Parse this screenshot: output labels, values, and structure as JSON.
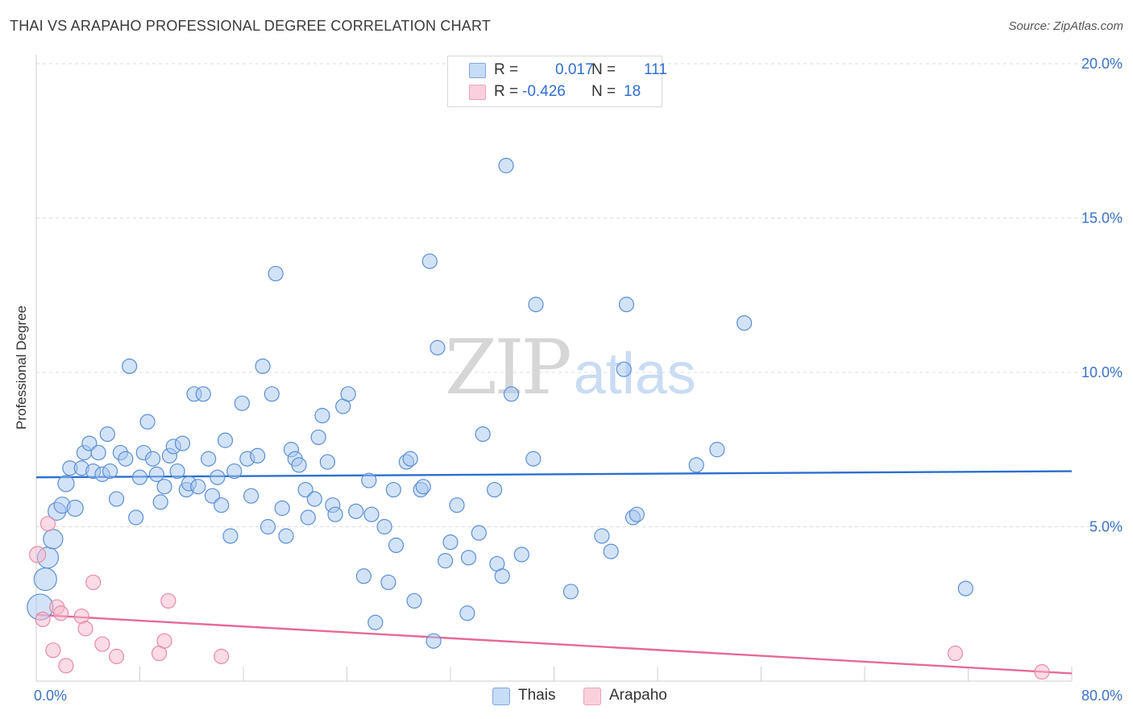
{
  "title": "THAI VS ARAPAHO PROFESSIONAL DEGREE CORRELATION CHART",
  "source": "Source: ZipAtlas.com",
  "watermark": {
    "zip": "ZIP",
    "atlas": "atlas"
  },
  "legend": [
    {
      "name": "Thais",
      "r_label": "R =",
      "r_value": "0.017",
      "n_label": "N =",
      "n_value": "111",
      "color": "#a8c8f0",
      "stroke": "#5b8fd6"
    },
    {
      "name": "Arapaho",
      "r_label": "R =",
      "r_value": "-0.426",
      "n_label": "N =",
      "n_value": "18",
      "color": "#f7b8cb",
      "stroke": "#e88aa8"
    }
  ],
  "chart_data": {
    "type": "scatter",
    "title": "THAI VS ARAPAHO PROFESSIONAL DEGREE CORRELATION CHART",
    "xlabel": "",
    "ylabel": "Professional Degree",
    "xlim": [
      0,
      80
    ],
    "ylim": [
      0,
      20.5
    ],
    "x_tick_labels": [
      "0.0%",
      "80.0%"
    ],
    "y_ticks": [
      5,
      10,
      15,
      20
    ],
    "y_tick_labels": [
      "5.0%",
      "10.0%",
      "15.0%",
      "20.0%"
    ],
    "grid": true,
    "series": [
      {
        "name": "Thais",
        "color": "#a8c8f0",
        "stroke": "#5b8fd6",
        "trend": {
          "x": [
            0,
            80
          ],
          "y": [
            6.6,
            6.8
          ],
          "color": "#2a6fd0"
        },
        "points": [
          [
            0.3,
            2.4,
            16
          ],
          [
            0.7,
            3.3,
            14
          ],
          [
            0.9,
            4.0,
            13
          ],
          [
            1.3,
            4.6,
            12
          ],
          [
            1.6,
            5.5,
            11
          ],
          [
            2.0,
            5.7,
            10
          ],
          [
            2.3,
            6.4,
            10
          ],
          [
            2.6,
            6.9,
            9
          ],
          [
            3.0,
            5.6,
            10
          ],
          [
            3.5,
            6.9,
            9
          ],
          [
            3.7,
            7.4,
            9
          ],
          [
            4.1,
            7.7,
            9
          ],
          [
            4.4,
            6.8,
            9
          ],
          [
            4.8,
            7.4,
            9
          ],
          [
            5.1,
            6.7,
            9
          ],
          [
            5.5,
            8.0,
            9
          ],
          [
            5.7,
            6.8,
            9
          ],
          [
            6.2,
            5.9,
            9
          ],
          [
            6.5,
            7.4,
            9
          ],
          [
            6.9,
            7.2,
            9
          ],
          [
            7.2,
            10.2,
            9
          ],
          [
            7.7,
            5.3,
            9
          ],
          [
            8.0,
            6.6,
            9
          ],
          [
            8.3,
            7.4,
            9
          ],
          [
            8.6,
            8.4,
            9
          ],
          [
            9.0,
            7.2,
            9
          ],
          [
            9.3,
            6.7,
            9
          ],
          [
            9.6,
            5.8,
            9
          ],
          [
            9.9,
            6.3,
            9
          ],
          [
            10.3,
            7.3,
            9
          ],
          [
            10.6,
            7.6,
            9
          ],
          [
            10.9,
            6.8,
            9
          ],
          [
            11.3,
            7.7,
            9
          ],
          [
            11.6,
            6.2,
            9
          ],
          [
            11.8,
            6.4,
            9
          ],
          [
            12.2,
            9.3,
            9
          ],
          [
            12.5,
            6.3,
            9
          ],
          [
            12.9,
            9.3,
            9
          ],
          [
            13.3,
            7.2,
            9
          ],
          [
            13.6,
            6.0,
            9
          ],
          [
            14.0,
            6.6,
            9
          ],
          [
            14.3,
            5.7,
            9
          ],
          [
            14.6,
            7.8,
            9
          ],
          [
            15.0,
            4.7,
            9
          ],
          [
            15.3,
            6.8,
            9
          ],
          [
            15.9,
            9.0,
            9
          ],
          [
            16.3,
            7.2,
            9
          ],
          [
            16.6,
            6.0,
            9
          ],
          [
            17.1,
            7.3,
            9
          ],
          [
            17.5,
            10.2,
            9
          ],
          [
            17.9,
            5.0,
            9
          ],
          [
            18.2,
            9.3,
            9
          ],
          [
            18.5,
            13.2,
            9
          ],
          [
            19.0,
            5.6,
            9
          ],
          [
            19.3,
            4.7,
            9
          ],
          [
            19.7,
            7.5,
            9
          ],
          [
            20.0,
            7.2,
            9
          ],
          [
            20.3,
            7.0,
            9
          ],
          [
            20.8,
            6.2,
            9
          ],
          [
            21.0,
            5.3,
            9
          ],
          [
            21.5,
            5.9,
            9
          ],
          [
            21.8,
            7.9,
            9
          ],
          [
            22.1,
            8.6,
            9
          ],
          [
            22.5,
            7.1,
            9
          ],
          [
            22.9,
            5.7,
            9
          ],
          [
            23.1,
            5.4,
            9
          ],
          [
            23.7,
            8.9,
            9
          ],
          [
            24.1,
            9.3,
            9
          ],
          [
            24.7,
            5.5,
            9
          ],
          [
            25.3,
            3.4,
            9
          ],
          [
            25.7,
            6.5,
            9
          ],
          [
            25.9,
            5.4,
            9
          ],
          [
            26.2,
            1.9,
            9
          ],
          [
            26.9,
            5.0,
            9
          ],
          [
            27.2,
            3.2,
            9
          ],
          [
            27.6,
            6.2,
            9
          ],
          [
            27.8,
            4.4,
            9
          ],
          [
            28.6,
            7.1,
            9
          ],
          [
            28.9,
            7.2,
            9
          ],
          [
            29.2,
            2.6,
            9
          ],
          [
            29.7,
            6.2,
            9
          ],
          [
            29.9,
            6.3,
            9
          ],
          [
            30.4,
            13.6,
            9
          ],
          [
            30.7,
            1.3,
            9
          ],
          [
            31.0,
            10.8,
            9
          ],
          [
            31.6,
            3.9,
            9
          ],
          [
            32.0,
            4.5,
            9
          ],
          [
            32.5,
            5.7,
            9
          ],
          [
            33.3,
            2.2,
            9
          ],
          [
            33.4,
            4.0,
            9
          ],
          [
            34.2,
            4.8,
            9
          ],
          [
            34.5,
            8.0,
            9
          ],
          [
            35.4,
            6.2,
            9
          ],
          [
            35.6,
            3.8,
            9
          ],
          [
            36.0,
            3.4,
            9
          ],
          [
            36.3,
            16.7,
            9
          ],
          [
            36.7,
            9.3,
            9
          ],
          [
            37.5,
            4.1,
            9
          ],
          [
            38.4,
            7.2,
            9
          ],
          [
            38.6,
            12.2,
            9
          ],
          [
            41.3,
            2.9,
            9
          ],
          [
            43.7,
            4.7,
            9
          ],
          [
            44.4,
            4.2,
            9
          ],
          [
            45.4,
            10.1,
            9
          ],
          [
            45.6,
            12.2,
            9
          ],
          [
            46.1,
            5.3,
            9
          ],
          [
            46.4,
            5.4,
            9
          ],
          [
            51.0,
            7.0,
            9
          ],
          [
            52.6,
            7.5,
            9
          ],
          [
            54.7,
            11.6,
            9
          ],
          [
            71.8,
            3.0,
            9
          ]
        ]
      },
      {
        "name": "Arapaho",
        "color": "#f7b8cb",
        "stroke": "#e88aa8",
        "trend": {
          "x": [
            0,
            80
          ],
          "y": [
            2.15,
            0.25
          ],
          "color": "#e56a98"
        },
        "points": [
          [
            0.1,
            4.1,
            10
          ],
          [
            0.5,
            2.0,
            9
          ],
          [
            0.9,
            5.1,
            9
          ],
          [
            1.3,
            1.0,
            9
          ],
          [
            1.6,
            2.4,
            9
          ],
          [
            1.9,
            2.2,
            9
          ],
          [
            2.3,
            0.5,
            9
          ],
          [
            3.5,
            2.1,
            9
          ],
          [
            3.8,
            1.7,
            9
          ],
          [
            4.4,
            3.2,
            9
          ],
          [
            5.1,
            1.2,
            9
          ],
          [
            6.2,
            0.8,
            9
          ],
          [
            9.5,
            0.9,
            9
          ],
          [
            9.9,
            1.3,
            9
          ],
          [
            10.2,
            2.6,
            9
          ],
          [
            14.3,
            0.8,
            9
          ],
          [
            71.0,
            0.9,
            9
          ],
          [
            77.7,
            0.3,
            9
          ]
        ]
      }
    ]
  }
}
